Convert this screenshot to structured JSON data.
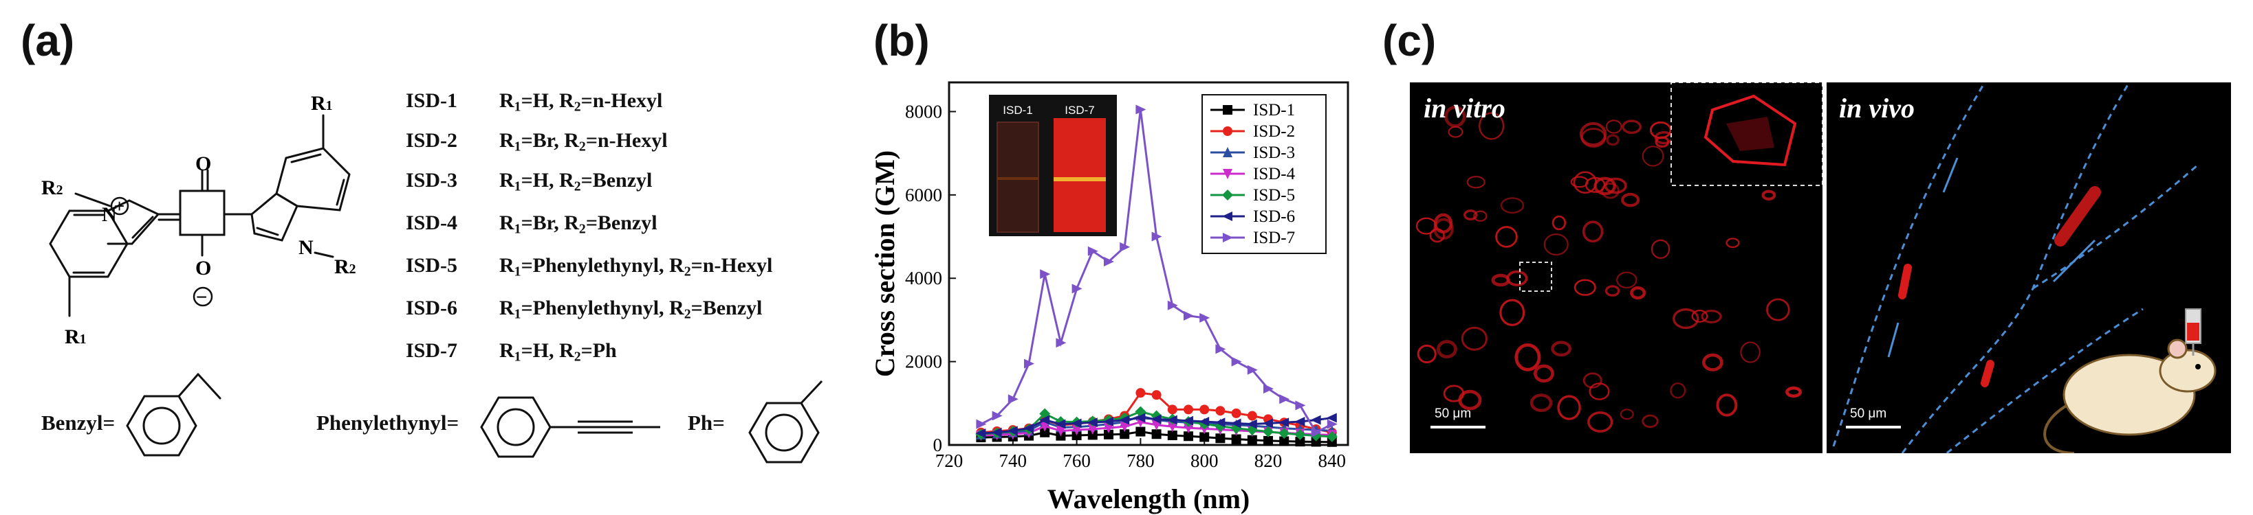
{
  "panels": {
    "a": "(a)",
    "b": "(b)",
    "c": "(c)"
  },
  "structure": {
    "atoms": {
      "n_plus": "N",
      "n2": "N",
      "o_top": "O",
      "o_bottom": "O",
      "plus": "+",
      "minus": "−",
      "r1": "R",
      "r1_sub": "1",
      "r2": "R",
      "r2_sub": "2"
    },
    "isd_list": [
      {
        "name": "ISD-1",
        "r1": "H",
        "r2": "n-Hexyl"
      },
      {
        "name": "ISD-2",
        "r1": "Br",
        "r2": "n-Hexyl"
      },
      {
        "name": "ISD-3",
        "r1": "H",
        "r2": "Benzyl"
      },
      {
        "name": "ISD-4",
        "r1": "Br",
        "r2": "Benzyl"
      },
      {
        "name": "ISD-5",
        "r1": "Phenylethynyl",
        "r2": "n-Hexyl"
      },
      {
        "name": "ISD-6",
        "r1": "Phenylethynyl",
        "r2": "Benzyl"
      },
      {
        "name": "ISD-7",
        "r1": "H",
        "r2": "Ph"
      }
    ],
    "substituents": {
      "benzyl": "Benzyl=",
      "phenylethynyl": "Phenylethynyl=",
      "ph": "Ph="
    }
  },
  "chart_data": {
    "type": "line",
    "xlabel": "Wavelength (nm)",
    "ylabel": "Cross section (GM)",
    "xlim": [
      720,
      845
    ],
    "ylim": [
      0,
      8700
    ],
    "xticks": [
      720,
      740,
      760,
      780,
      800,
      820,
      840
    ],
    "yticks": [
      0,
      2000,
      4000,
      6000,
      8000
    ],
    "legend_position": "top-right",
    "x": [
      730,
      735,
      740,
      745,
      750,
      755,
      760,
      765,
      770,
      775,
      780,
      785,
      790,
      795,
      800,
      805,
      810,
      815,
      820,
      825,
      830,
      835,
      840
    ],
    "series": [
      {
        "name": "ISD-1",
        "color": "#000000",
        "marker": "square",
        "values": [
          180,
          190,
          200,
          220,
          300,
          220,
          230,
          240,
          250,
          260,
          320,
          260,
          230,
          210,
          190,
          160,
          140,
          120,
          100,
          90,
          80,
          75,
          70
        ]
      },
      {
        "name": "ISD-2",
        "color": "#e8231d",
        "marker": "circle",
        "values": [
          300,
          330,
          360,
          400,
          600,
          480,
          500,
          560,
          620,
          700,
          1250,
          1200,
          850,
          850,
          850,
          820,
          760,
          700,
          620,
          540,
          470,
          380,
          300
        ]
      },
      {
        "name": "ISD-3",
        "color": "#2c4ea0",
        "marker": "triangle-up",
        "values": [
          250,
          270,
          300,
          340,
          550,
          420,
          430,
          460,
          500,
          550,
          700,
          600,
          560,
          540,
          520,
          500,
          480,
          460,
          430,
          400,
          380,
          360,
          340
        ]
      },
      {
        "name": "ISD-4",
        "color": "#cc2ccc",
        "marker": "triangle-down",
        "values": [
          230,
          240,
          260,
          290,
          450,
          340,
          360,
          380,
          410,
          440,
          550,
          480,
          440,
          410,
          390,
          370,
          350,
          330,
          310,
          290,
          270,
          250,
          240
        ]
      },
      {
        "name": "ISD-5",
        "color": "#129640",
        "marker": "diamond",
        "values": [
          260,
          290,
          330,
          380,
          750,
          560,
          550,
          570,
          600,
          650,
          800,
          700,
          620,
          560,
          500,
          450,
          400,
          360,
          320,
          280,
          250,
          220,
          200
        ]
      },
      {
        "name": "ISD-6",
        "color": "#1f1f8a",
        "marker": "triangle-left",
        "values": [
          280,
          300,
          340,
          400,
          600,
          500,
          520,
          540,
          560,
          600,
          650,
          620,
          600,
          580,
          560,
          540,
          520,
          500,
          520,
          540,
          560,
          600,
          650
        ]
      },
      {
        "name": "ISD-7",
        "color": "#7b52c8",
        "marker": "triangle-right",
        "values": [
          500,
          700,
          1100,
          1950,
          4100,
          2450,
          3750,
          4650,
          4400,
          4750,
          8050,
          5000,
          3350,
          3100,
          3050,
          2300,
          2000,
          1800,
          1350,
          1100,
          950,
          300,
          500
        ]
      }
    ],
    "inset": {
      "label_left": "ISD-1",
      "label_right": "ISD-7"
    }
  },
  "micro": {
    "in_vitro": {
      "title": "in vitro",
      "scale": "50 μm"
    },
    "in_vivo": {
      "title": "in vivo",
      "scale": "50 μm"
    }
  }
}
